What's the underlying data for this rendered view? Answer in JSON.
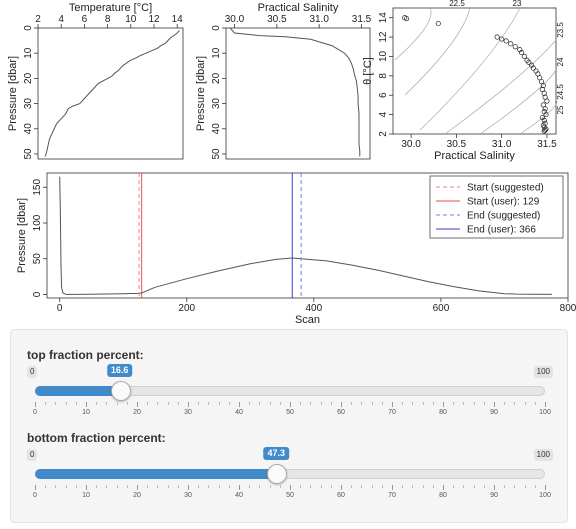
{
  "chart_data": [
    {
      "type": "line",
      "title": "Temperature [°C]",
      "ylabel": "Pressure [dbar]",
      "xlim": [
        2,
        14.5
      ],
      "ylim": [
        52,
        0
      ],
      "xticks": [
        "2",
        "4",
        "6",
        "8",
        "10",
        "12",
        "14"
      ],
      "yticks": [
        "0",
        "10",
        "20",
        "30",
        "40",
        "50"
      ],
      "x": [
        14.2,
        14.0,
        13.7,
        13.4,
        13.2,
        13.0,
        12.6,
        12.3,
        11.8,
        11.3,
        10.8,
        10.4,
        9.9,
        9.6,
        9.3,
        9.1,
        8.9,
        8.6,
        8.4,
        8.0,
        7.6,
        7.2,
        6.8,
        6.2,
        5.6,
        5.0,
        4.6,
        4.4,
        4.0,
        3.6,
        3.4,
        3.2,
        3.0,
        2.9,
        2.8,
        2.7,
        2.6
      ],
      "y": [
        1,
        2,
        3,
        4,
        5,
        6,
        7,
        8,
        9,
        10,
        11,
        12,
        13,
        14,
        15,
        16,
        17,
        18,
        19,
        20,
        21,
        22,
        24,
        27,
        30,
        31,
        32,
        34,
        36,
        38,
        40,
        42,
        44,
        46,
        48,
        50,
        51
      ]
    },
    {
      "type": "line",
      "title": "Practical Salinity",
      "ylabel": "Pressure [dbar]",
      "xlim": [
        29.9,
        31.6
      ],
      "ylim": [
        52,
        0
      ],
      "xticks": [
        "30.0",
        "30.5",
        "31.0",
        "31.5"
      ],
      "yticks": [
        "0",
        "10",
        "20",
        "30",
        "40",
        "50"
      ],
      "x": [
        29.95,
        30.0,
        30.3,
        30.6,
        30.9,
        31.05,
        31.15,
        31.25,
        31.3,
        31.35,
        31.38,
        31.4,
        31.42,
        31.44,
        31.45,
        31.46,
        31.46,
        31.47,
        31.47,
        31.47,
        31.47,
        31.48,
        31.48
      ],
      "y": [
        0,
        2,
        3,
        3.5,
        4.5,
        6,
        7,
        9,
        10,
        12,
        14,
        16,
        19,
        21,
        24,
        27,
        30,
        34,
        38,
        42,
        46,
        49,
        51
      ]
    },
    {
      "type": "scatter",
      "title": "",
      "xlabel": "Practical Salinity",
      "ylabel": "θ [°C]",
      "xlim": [
        29.8,
        31.6
      ],
      "ylim": [
        2,
        15
      ],
      "xticks": [
        "30.0",
        "30.5",
        "31.0",
        "31.5"
      ],
      "yticks": [
        "2",
        "4",
        "6",
        "8",
        "10",
        "12",
        "14"
      ],
      "density_labels": [
        "22.5",
        "23",
        "23.5",
        "24",
        "24.5",
        "25"
      ],
      "x": [
        29.93,
        29.95,
        30.3,
        30.95,
        31.0,
        31.05,
        31.1,
        31.15,
        31.2,
        31.22,
        31.25,
        31.28,
        31.3,
        31.33,
        31.35,
        31.38,
        31.4,
        31.42,
        31.44,
        31.46,
        31.45,
        31.47,
        31.48,
        31.5,
        31.46,
        31.48,
        31.47,
        31.49,
        31.45,
        31.47,
        31.48,
        31.46,
        31.47,
        31.49,
        31.48,
        31.47
      ],
      "y": [
        14.0,
        13.9,
        13.4,
        12.0,
        11.8,
        11.6,
        11.3,
        11.0,
        10.7,
        10.4,
        10.0,
        9.6,
        9.4,
        9.1,
        8.8,
        8.5,
        8.2,
        7.8,
        7.4,
        7.0,
        6.6,
        6.2,
        5.8,
        5.4,
        5.0,
        4.6,
        4.3,
        4.0,
        3.7,
        3.4,
        3.1,
        2.9,
        2.7,
        2.5,
        2.4,
        2.3
      ]
    },
    {
      "type": "line",
      "title": "",
      "xlabel": "Scan",
      "ylabel": "Pressure [dbar]",
      "xlim": [
        -20,
        800
      ],
      "ylim": [
        -5,
        170
      ],
      "xticks": [
        "0",
        "200",
        "400",
        "600",
        "800"
      ],
      "yticks": [
        "0",
        "50",
        "100",
        "150"
      ],
      "x": [
        0,
        1,
        2,
        3,
        5,
        10,
        30,
        60,
        100,
        125,
        129,
        150,
        200,
        250,
        300,
        340,
        366,
        380,
        420,
        460,
        500,
        540,
        580,
        620,
        660,
        700,
        720,
        740,
        760,
        775
      ],
      "y": [
        165,
        120,
        40,
        10,
        2,
        0,
        0,
        0.5,
        1,
        1.5,
        2,
        10,
        22,
        33,
        43,
        49,
        51,
        50,
        47,
        41,
        34,
        26,
        18,
        11,
        5,
        1,
        0.5,
        0.3,
        0.2,
        0
      ],
      "markers": [
        {
          "name": "Start (suggested)",
          "x": 125,
          "color": "#f08080",
          "dash": true
        },
        {
          "name": "Start (user): 129",
          "x": 129,
          "color": "#e05050",
          "dash": false
        },
        {
          "name": "End (suggested)",
          "x": 380,
          "color": "#7b7bdc",
          "dash": true
        },
        {
          "name": "End (user): 366",
          "x": 366,
          "color": "#3b3bd0",
          "dash": false
        }
      ],
      "legend": "top-right"
    }
  ],
  "sliders": [
    {
      "label": "top fraction percent:",
      "value": 16.6,
      "min": "0",
      "max": "100",
      "ticks": [
        "0",
        "10",
        "20",
        "30",
        "40",
        "50",
        "60",
        "70",
        "80",
        "90",
        "100"
      ],
      "value_label": "16.6"
    },
    {
      "label": "bottom fraction percent:",
      "value": 47.3,
      "min": "0",
      "max": "100",
      "ticks": [
        "0",
        "10",
        "20",
        "30",
        "40",
        "50",
        "60",
        "70",
        "80",
        "90",
        "100"
      ],
      "value_label": "47.3"
    }
  ],
  "colors": {
    "slider_accent": "#428bca",
    "line": "#555555",
    "axis": "#333333"
  }
}
